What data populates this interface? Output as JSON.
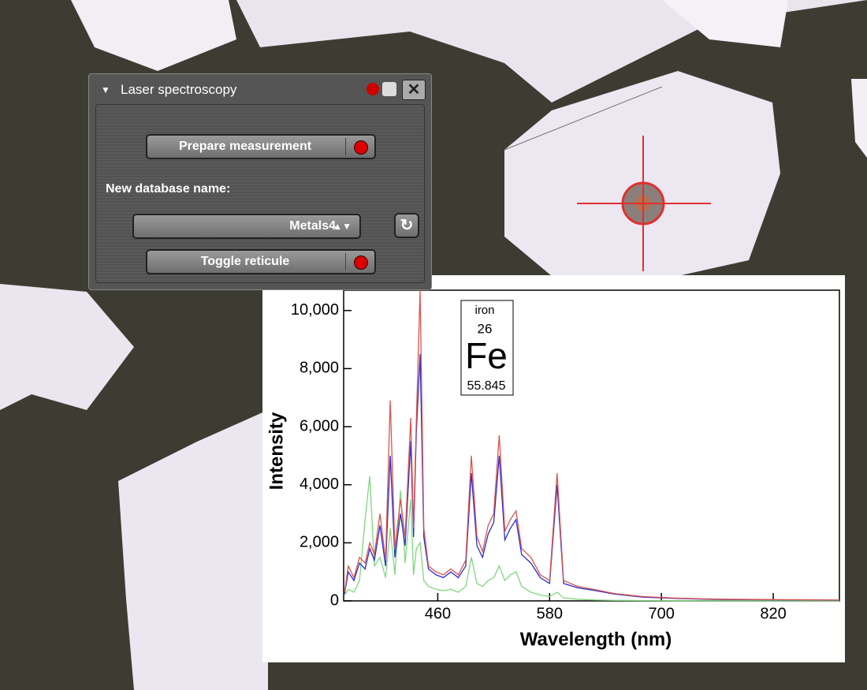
{
  "panel": {
    "title": "Laser spectroscopy",
    "prepare_button": "Prepare measurement",
    "database_label": "New database name:",
    "database_value": "Metals4",
    "toggle_button": "Toggle reticule"
  },
  "chart_data": {
    "type": "line",
    "xlabel": "Wavelength (nm)",
    "ylabel": "Intensity",
    "annotation": {
      "name": "iron",
      "number": 26,
      "symbol": "Fe",
      "mass": 55.845
    },
    "x": [
      360,
      364,
      370,
      376,
      382,
      387,
      392,
      398,
      404,
      409,
      414,
      420,
      425,
      431,
      434,
      437,
      441,
      445,
      450,
      458,
      466,
      474,
      482,
      490,
      496,
      502,
      508,
      514,
      520,
      526,
      532,
      538,
      544,
      550,
      560,
      570,
      580,
      588,
      595,
      610,
      630,
      650,
      680,
      720,
      760,
      800,
      840,
      891
    ],
    "series": [
      {
        "color": "#d9544e",
        "values": [
          300,
          1200,
          800,
          1500,
          1300,
          2000,
          1600,
          3000,
          1400,
          6900,
          1800,
          3500,
          2200,
          6300,
          2500,
          6200,
          10700,
          2500,
          1200,
          1000,
          900,
          1100,
          900,
          1400,
          5000,
          2200,
          1700,
          2600,
          3000,
          5700,
          2400,
          2800,
          3100,
          1800,
          1500,
          900,
          700,
          4400,
          700,
          500,
          380,
          250,
          150,
          90,
          60,
          50,
          40,
          30
        ]
      },
      {
        "color": "#2b2bcf",
        "values": [
          250,
          1000,
          700,
          1300,
          1100,
          1800,
          1400,
          2600,
          1200,
          5000,
          1500,
          3000,
          1900,
          5500,
          2200,
          5800,
          8500,
          2200,
          1100,
          900,
          800,
          1000,
          800,
          1200,
          4400,
          1900,
          1500,
          2300,
          2700,
          5000,
          2100,
          2500,
          2800,
          1600,
          1300,
          800,
          600,
          4000,
          600,
          450,
          350,
          230,
          130,
          80,
          50,
          40,
          35,
          25
        ]
      },
      {
        "color": "#7fd87f",
        "values": [
          200,
          400,
          300,
          700,
          2800,
          4300,
          1200,
          1500,
          800,
          2500,
          900,
          3800,
          1300,
          3500,
          900,
          1800,
          2000,
          700,
          500,
          400,
          350,
          400,
          300,
          500,
          1500,
          600,
          500,
          700,
          800,
          1200,
          700,
          900,
          1000,
          500,
          300,
          200,
          150,
          300,
          100,
          60,
          30,
          20,
          10,
          5,
          0,
          0,
          0,
          0
        ]
      }
    ],
    "xlim": [
      359,
      891
    ],
    "xticks": [
      460,
      580,
      700,
      820
    ],
    "ylim": [
      0,
      10700
    ],
    "yticks": [
      0,
      {
        "value": 2000,
        "label": "2,000"
      },
      {
        "value": 4000,
        "label": "4,000"
      },
      {
        "value": 6000,
        "label": "6,000"
      },
      {
        "value": 8000,
        "label": "8,000"
      },
      {
        "value": 10000,
        "label": "10,000"
      }
    ]
  }
}
